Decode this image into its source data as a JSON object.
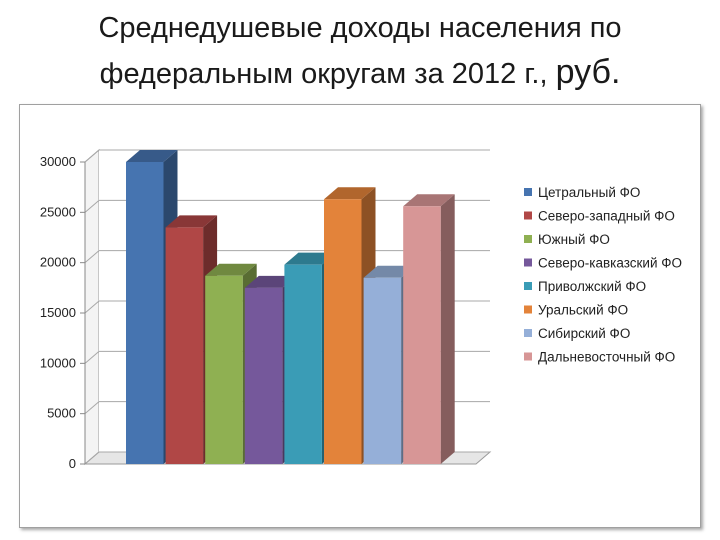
{
  "title": {
    "line1": "Среднедушевые доходы населения по",
    "line2_main": "федеральным округам за 2012 г.,",
    "line2_unit": "руб."
  },
  "chart_data": {
    "type": "bar",
    "style": "3d-clustered",
    "title": "",
    "xlabel": "",
    "ylabel": "",
    "ylim": [
      0,
      30000
    ],
    "yticks": [
      "0",
      "5000",
      "10000",
      "15000",
      "20000",
      "25000",
      "30000"
    ],
    "grid": true,
    "legend_position": "right",
    "series": [
      {
        "name": "Цетральный ФО",
        "value": 30000,
        "color": "#4674b0"
      },
      {
        "name": "Северо-западный ФО",
        "value": 23500,
        "color": "#b04746"
      },
      {
        "name": "Южный ФО",
        "value": 18700,
        "color": "#8fb052"
      },
      {
        "name": "Северо-кавказский ФО",
        "value": 17500,
        "color": "#75589b"
      },
      {
        "name": "Приволжский ФО",
        "value": 19800,
        "color": "#3a9cb6"
      },
      {
        "name": "Уральский ФО",
        "value": 26300,
        "color": "#e3833a"
      },
      {
        "name": "Сибирский ФО",
        "value": 18500,
        "color": "#95afd8"
      },
      {
        "name": "Дальневосточный ФО",
        "value": 25600,
        "color": "#d79696"
      }
    ]
  }
}
